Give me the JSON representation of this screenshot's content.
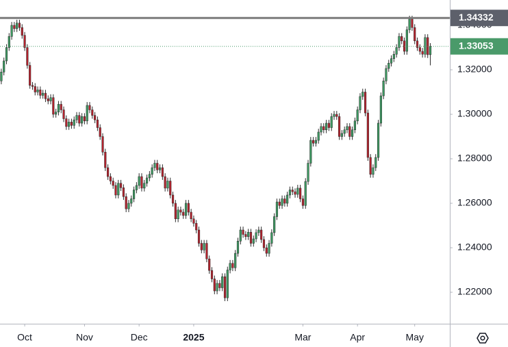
{
  "chart_data": {
    "type": "candlestick",
    "up_color": "#3d9a62",
    "down_color": "#b5222d",
    "wick_color": "#2a2a2a",
    "xlim": [
      -0.5,
      172.5
    ],
    "xticks": [
      {
        "value": 9,
        "label": "Oct"
      },
      {
        "value": 32,
        "label": "Nov"
      },
      {
        "value": 53,
        "label": "Dec"
      },
      {
        "value": 74,
        "label": "2025"
      },
      {
        "value": 116,
        "label": "Mar"
      },
      {
        "value": 137,
        "label": "Apr"
      },
      {
        "value": 159,
        "label": "May"
      }
    ],
    "ylim": [
      1.20585,
      1.35138
    ],
    "yticks": [
      {
        "value": 1.22,
        "label": "1.22000"
      },
      {
        "value": 1.24,
        "label": "1.24000"
      },
      {
        "value": 1.26,
        "label": "1.26000"
      },
      {
        "value": 1.28,
        "label": "1.28000"
      },
      {
        "value": 1.3,
        "label": "1.30000"
      },
      {
        "value": 1.32,
        "label": "1.32000"
      },
      {
        "value": 1.34,
        "label": "1.34000"
      }
    ],
    "resistance": {
      "value": 1.34332,
      "label": "1.34332",
      "color": "#7b7b7b"
    },
    "last_price": {
      "value": 1.33053,
      "label": "1.33053",
      "color": "#4a9a6a"
    },
    "ohlc": [
      [
        1.315,
        1.3205,
        1.3135,
        1.319
      ],
      [
        1.319,
        1.3255,
        1.3175,
        1.324
      ],
      [
        1.324,
        1.3315,
        1.3225,
        1.33
      ],
      [
        1.33,
        1.3365,
        1.3285,
        1.335
      ],
      [
        1.335,
        1.3415,
        1.3335,
        1.34
      ],
      [
        1.34,
        1.3415,
        1.337,
        1.3385
      ],
      [
        1.3385,
        1.3425,
        1.337,
        1.341
      ],
      [
        1.341,
        1.3425,
        1.3375,
        1.339
      ],
      [
        1.339,
        1.3405,
        1.334,
        1.3355
      ],
      [
        1.3355,
        1.337,
        1.3285,
        1.33
      ],
      [
        1.33,
        1.3315,
        1.3205,
        1.322
      ],
      [
        1.322,
        1.3235,
        1.3115,
        1.313
      ],
      [
        1.313,
        1.3145,
        1.311,
        1.3125
      ],
      [
        1.3125,
        1.314,
        1.3085,
        1.31
      ],
      [
        1.31,
        1.3125,
        1.3085,
        1.311
      ],
      [
        1.311,
        1.3125,
        1.307,
        1.3085
      ],
      [
        1.3085,
        1.311,
        1.307,
        1.3095
      ],
      [
        1.3095,
        1.311,
        1.3055,
        1.307
      ],
      [
        1.307,
        1.3085,
        1.3045,
        1.306
      ],
      [
        1.306,
        1.309,
        1.3045,
        1.3075
      ],
      [
        1.3075,
        1.309,
        1.2985,
        1.3
      ],
      [
        1.3,
        1.3025,
        1.2985,
        1.301
      ],
      [
        1.301,
        1.306,
        1.2995,
        1.3045
      ],
      [
        1.3045,
        1.306,
        1.3005,
        1.302
      ],
      [
        1.302,
        1.3035,
        1.2965,
        1.298
      ],
      [
        1.298,
        1.2995,
        1.293,
        1.2945
      ],
      [
        1.2945,
        1.298,
        1.293,
        1.2965
      ],
      [
        1.2965,
        1.298,
        1.2935,
        1.295
      ],
      [
        1.295,
        1.299,
        1.2935,
        1.2975
      ],
      [
        1.2975,
        1.301,
        1.296,
        1.2995
      ],
      [
        1.2995,
        1.301,
        1.2945,
        1.296
      ],
      [
        1.296,
        1.3005,
        1.2945,
        1.299
      ],
      [
        1.299,
        1.3005,
        1.2955,
        1.297
      ],
      [
        1.297,
        1.3055,
        1.2955,
        1.304
      ],
      [
        1.304,
        1.3055,
        1.3005,
        1.302
      ],
      [
        1.302,
        1.3035,
        1.298,
        1.2995
      ],
      [
        1.2995,
        1.301,
        1.296,
        1.2975
      ],
      [
        1.2975,
        1.299,
        1.2925,
        1.294
      ],
      [
        1.294,
        1.2955,
        1.2885,
        1.29
      ],
      [
        1.29,
        1.2915,
        1.2815,
        1.283
      ],
      [
        1.283,
        1.2845,
        1.2745,
        1.276
      ],
      [
        1.276,
        1.2775,
        1.2705,
        1.272
      ],
      [
        1.272,
        1.2735,
        1.2685,
        1.27
      ],
      [
        1.27,
        1.2715,
        1.2665,
        1.268
      ],
      [
        1.268,
        1.2695,
        1.2622,
        1.2637
      ],
      [
        1.2637,
        1.2705,
        1.2622,
        1.269
      ],
      [
        1.269,
        1.2705,
        1.2655,
        1.267
      ],
      [
        1.267,
        1.2685,
        1.2615,
        1.263
      ],
      [
        1.263,
        1.2645,
        1.256,
        1.2575
      ],
      [
        1.2575,
        1.2615,
        1.256,
        1.26
      ],
      [
        1.26,
        1.2635,
        1.2585,
        1.262
      ],
      [
        1.262,
        1.2675,
        1.2605,
        1.266
      ],
      [
        1.266,
        1.2695,
        1.2645,
        1.268
      ],
      [
        1.268,
        1.2735,
        1.2665,
        1.272
      ],
      [
        1.272,
        1.2735,
        1.2653,
        1.2668
      ],
      [
        1.2668,
        1.2705,
        1.2653,
        1.269
      ],
      [
        1.269,
        1.2729,
        1.2675,
        1.2714
      ],
      [
        1.2714,
        1.2745,
        1.2699,
        1.273
      ],
      [
        1.273,
        1.2775,
        1.2715,
        1.276
      ],
      [
        1.276,
        1.2795,
        1.2745,
        1.278
      ],
      [
        1.278,
        1.2795,
        1.2735,
        1.275
      ],
      [
        1.275,
        1.2775,
        1.2735,
        1.276
      ],
      [
        1.276,
        1.2775,
        1.2705,
        1.272
      ],
      [
        1.272,
        1.2735,
        1.2653,
        1.2668
      ],
      [
        1.2668,
        1.2715,
        1.2653,
        1.27
      ],
      [
        1.27,
        1.2715,
        1.2622,
        1.2637
      ],
      [
        1.2637,
        1.2652,
        1.2585,
        1.26
      ],
      [
        1.26,
        1.2615,
        1.2515,
        1.253
      ],
      [
        1.253,
        1.2585,
        1.2515,
        1.257
      ],
      [
        1.257,
        1.2585,
        1.2545,
        1.256
      ],
      [
        1.256,
        1.2575,
        1.253,
        1.2545
      ],
      [
        1.2545,
        1.2615,
        1.253,
        1.26
      ],
      [
        1.26,
        1.2615,
        1.2545,
        1.256
      ],
      [
        1.256,
        1.2575,
        1.2515,
        1.253
      ],
      [
        1.253,
        1.2545,
        1.2495,
        1.251
      ],
      [
        1.251,
        1.2525,
        1.2465,
        1.248
      ],
      [
        1.248,
        1.2495,
        1.2405,
        1.242
      ],
      [
        1.242,
        1.2435,
        1.2375,
        1.239
      ],
      [
        1.239,
        1.2435,
        1.2375,
        1.242
      ],
      [
        1.242,
        1.2435,
        1.2335,
        1.235
      ],
      [
        1.235,
        1.2365,
        1.2283,
        1.2298
      ],
      [
        1.2298,
        1.2313,
        1.2245,
        1.226
      ],
      [
        1.226,
        1.2275,
        1.2191,
        1.2206
      ],
      [
        1.2206,
        1.2255,
        1.2191,
        1.224
      ],
      [
        1.224,
        1.2255,
        1.2205,
        1.222
      ],
      [
        1.222,
        1.2285,
        1.2205,
        1.227
      ],
      [
        1.227,
        1.2285,
        1.216,
        1.2175
      ],
      [
        1.2175,
        1.2315,
        1.216,
        1.23
      ],
      [
        1.23,
        1.2345,
        1.2285,
        1.233
      ],
      [
        1.233,
        1.2345,
        1.2295,
        1.231
      ],
      [
        1.231,
        1.239,
        1.2295,
        1.2375
      ],
      [
        1.2375,
        1.2445,
        1.236,
        1.243
      ],
      [
        1.243,
        1.2495,
        1.2415,
        1.248
      ],
      [
        1.248,
        1.2495,
        1.2445,
        1.246
      ],
      [
        1.246,
        1.2475,
        1.2435,
        1.245
      ],
      [
        1.245,
        1.2485,
        1.2435,
        1.247
      ],
      [
        1.247,
        1.2485,
        1.2405,
        1.242
      ],
      [
        1.242,
        1.2455,
        1.2405,
        1.244
      ],
      [
        1.244,
        1.2483,
        1.2425,
        1.2468
      ],
      [
        1.2468,
        1.2495,
        1.2453,
        1.248
      ],
      [
        1.248,
        1.2495,
        1.2422,
        1.2437
      ],
      [
        1.2437,
        1.2452,
        1.2385,
        1.24
      ],
      [
        1.24,
        1.2415,
        1.236,
        1.2375
      ],
      [
        1.2375,
        1.2435,
        1.236,
        1.242
      ],
      [
        1.242,
        1.2483,
        1.2405,
        1.2468
      ],
      [
        1.2468,
        1.2555,
        1.2453,
        1.254
      ],
      [
        1.254,
        1.2621,
        1.2525,
        1.2606
      ],
      [
        1.2606,
        1.2621,
        1.2575,
        1.259
      ],
      [
        1.259,
        1.2635,
        1.2575,
        1.262
      ],
      [
        1.262,
        1.2635,
        1.2585,
        1.26
      ],
      [
        1.26,
        1.2652,
        1.2585,
        1.2637
      ],
      [
        1.2637,
        1.2675,
        1.2622,
        1.266
      ],
      [
        1.266,
        1.2675,
        1.2637,
        1.2652
      ],
      [
        1.2652,
        1.2667,
        1.2625,
        1.264
      ],
      [
        1.264,
        1.2683,
        1.2625,
        1.2668
      ],
      [
        1.2668,
        1.2683,
        1.2605,
        1.262
      ],
      [
        1.262,
        1.2635,
        1.2575,
        1.259
      ],
      [
        1.259,
        1.2713,
        1.2575,
        1.2698
      ],
      [
        1.2698,
        1.2795,
        1.2683,
        1.278
      ],
      [
        1.278,
        1.2898,
        1.2765,
        1.2883
      ],
      [
        1.2883,
        1.2898,
        1.2855,
        1.287
      ],
      [
        1.287,
        1.2898,
        1.2855,
        1.2883
      ],
      [
        1.2883,
        1.2935,
        1.2868,
        1.292
      ],
      [
        1.292,
        1.296,
        1.2905,
        1.2945
      ],
      [
        1.2945,
        1.296,
        1.2915,
        1.293
      ],
      [
        1.293,
        1.2975,
        1.2915,
        1.296
      ],
      [
        1.296,
        1.2975,
        1.2925,
        1.294
      ],
      [
        1.294,
        1.3005,
        1.2925,
        1.299
      ],
      [
        1.299,
        1.3015,
        1.2975,
        1.3
      ],
      [
        1.3,
        1.3015,
        1.2975,
        1.299
      ],
      [
        1.299,
        1.3005,
        1.2885,
        1.29
      ],
      [
        1.29,
        1.2929,
        1.2885,
        1.2914
      ],
      [
        1.2914,
        1.2945,
        1.2899,
        1.293
      ],
      [
        1.293,
        1.296,
        1.2915,
        1.2945
      ],
      [
        1.2945,
        1.296,
        1.2885,
        1.29
      ],
      [
        1.29,
        1.2945,
        1.2885,
        1.293
      ],
      [
        1.293,
        1.2985,
        1.2915,
        1.297
      ],
      [
        1.297,
        1.3035,
        1.2955,
        1.302
      ],
      [
        1.302,
        1.3095,
        1.3005,
        1.308
      ],
      [
        1.308,
        1.3115,
        1.3065,
        1.31
      ],
      [
        1.31,
        1.3115,
        1.2991,
        1.3006
      ],
      [
        1.3006,
        1.3021,
        1.2791,
        1.2806
      ],
      [
        1.2806,
        1.2821,
        1.2715,
        1.273
      ],
      [
        1.273,
        1.2775,
        1.2715,
        1.276
      ],
      [
        1.276,
        1.2821,
        1.2745,
        1.2806
      ],
      [
        1.2806,
        1.2975,
        1.2791,
        1.296
      ],
      [
        1.296,
        1.3098,
        1.2945,
        1.3083
      ],
      [
        1.3083,
        1.3165,
        1.3068,
        1.315
      ],
      [
        1.315,
        1.3221,
        1.3135,
        1.3206
      ],
      [
        1.3206,
        1.3245,
        1.3191,
        1.323
      ],
      [
        1.323,
        1.3265,
        1.3215,
        1.325
      ],
      [
        1.325,
        1.3285,
        1.3235,
        1.327
      ],
      [
        1.327,
        1.3315,
        1.3255,
        1.33
      ],
      [
        1.33,
        1.3365,
        1.3285,
        1.335
      ],
      [
        1.335,
        1.3365,
        1.3315,
        1.333
      ],
      [
        1.333,
        1.3345,
        1.3268,
        1.3283
      ],
      [
        1.3283,
        1.3395,
        1.3268,
        1.338
      ],
      [
        1.338,
        1.3443,
        1.3365,
        1.3428
      ],
      [
        1.3428,
        1.3443,
        1.3375,
        1.339
      ],
      [
        1.339,
        1.3405,
        1.3315,
        1.333
      ],
      [
        1.333,
        1.3345,
        1.3285,
        1.33
      ],
      [
        1.33,
        1.3315,
        1.3268,
        1.3283
      ],
      [
        1.3283,
        1.3298,
        1.3255,
        1.327
      ],
      [
        1.327,
        1.336,
        1.3255,
        1.3345
      ],
      [
        1.3345,
        1.336,
        1.3253,
        1.3268
      ],
      [
        1.3268,
        1.332,
        1.322,
        1.33053
      ]
    ]
  }
}
